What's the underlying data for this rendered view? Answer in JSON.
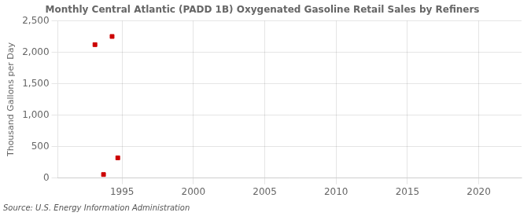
{
  "chart_data": {
    "type": "scatter",
    "title": "Monthly Central Atlantic (PADD 1B) Oxygenated Gasoline Retail Sales by Refiners",
    "ylabel": "Thousand Gallons per Day",
    "annotations": [
      "Source: U.S. Energy Information Administration"
    ],
    "x": [
      1993.1,
      1993.7,
      1994.3,
      1994.7
    ],
    "values": [
      2120,
      55,
      2250,
      320
    ],
    "color": "#cc0000",
    "marker": "square",
    "xlim": [
      1990.5,
      2023
    ],
    "xticks": [
      1995,
      2000,
      2005,
      2010,
      2015,
      2020
    ],
    "ylim": [
      0,
      2500
    ],
    "yticks": [
      0,
      500,
      {
        "value": 1000,
        "label": "1,000"
      },
      {
        "value": 1500,
        "label": "1,500"
      },
      {
        "value": 2000,
        "label": "2,000"
      },
      {
        "value": 2500,
        "label": "2,500"
      }
    ],
    "grid": true
  }
}
